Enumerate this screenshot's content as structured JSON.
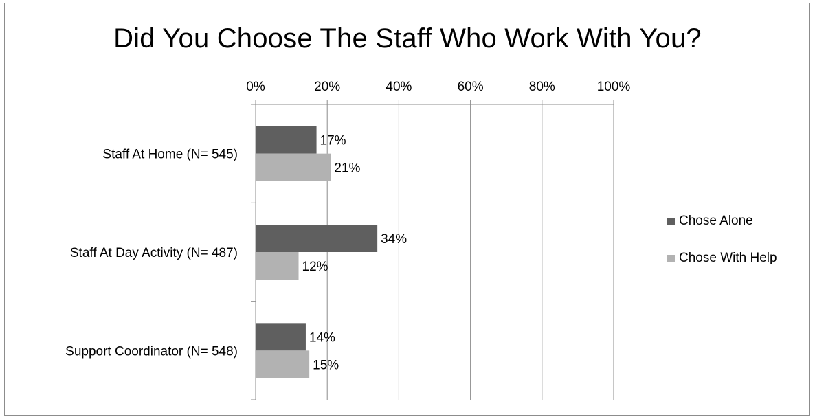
{
  "chart_data": {
    "type": "bar",
    "orientation": "horizontal",
    "title": "Did You Choose The Staff Who Work With You?",
    "categories": [
      "Staff At Home (N= 545)",
      "Staff At Day Activity (N= 487)",
      "Support Coordinator (N= 548)"
    ],
    "series": [
      {
        "name": "Chose Alone",
        "values": [
          17,
          34,
          14
        ],
        "labels": [
          "17%",
          "34%",
          "14%"
        ],
        "color": "#5f5f5f"
      },
      {
        "name": "Chose With Help",
        "values": [
          21,
          12,
          15
        ],
        "labels": [
          "21%",
          "12%",
          "15%"
        ],
        "color": "#b2b2b2"
      }
    ],
    "x_ticks": [
      "0%",
      "20%",
      "40%",
      "60%",
      "80%",
      "100%"
    ],
    "xlim": [
      0,
      100
    ],
    "x_axis_position": "top",
    "grid": true,
    "legend_position": "right"
  }
}
